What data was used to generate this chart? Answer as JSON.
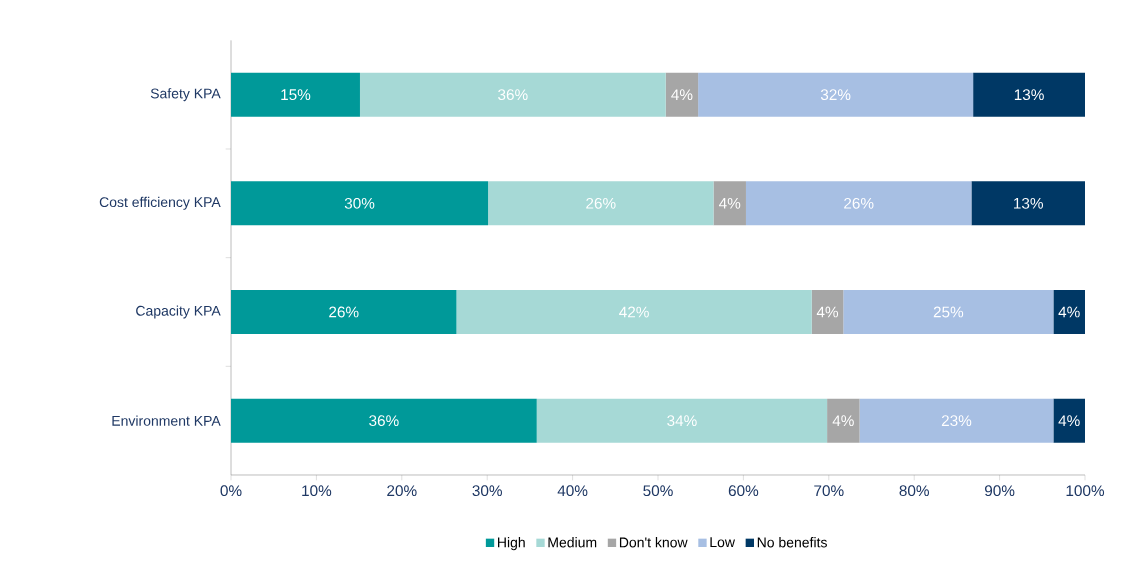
{
  "chart_data": {
    "type": "bar",
    "orientation": "horizontal",
    "stacked": true,
    "categories": [
      "Safety KPA",
      "Cost efficiency KPA",
      "Capacity KPA",
      "Environment KPA"
    ],
    "series": [
      {
        "name": "High",
        "color": "#009999",
        "values": [
          15.1,
          30.1,
          26.4,
          35.8
        ],
        "value_labels": [
          "15%",
          "30%",
          "26%",
          "36%"
        ]
      },
      {
        "name": "Medium",
        "color": "#a6d9d6",
        "values": [
          35.8,
          26.4,
          41.6,
          34.0
        ],
        "value_labels": [
          "36%",
          "26%",
          "42%",
          "34%"
        ]
      },
      {
        "name": "Don't know",
        "color": "#a6a6a6",
        "values": [
          3.8,
          3.8,
          3.7,
          3.8
        ],
        "value_labels": [
          "4%",
          "4%",
          "4%",
          "4%"
        ]
      },
      {
        "name": "Low",
        "color": "#a7bfe3",
        "values": [
          32.2,
          26.4,
          24.6,
          22.7
        ],
        "value_labels": [
          "32%",
          "26%",
          "25%",
          "23%"
        ]
      },
      {
        "name": "No benefits",
        "color": "#003865",
        "values": [
          13.1,
          13.3,
          3.7,
          3.7
        ],
        "value_labels": [
          "13%",
          "13%",
          "4%",
          "4%"
        ]
      }
    ],
    "xlim": [
      0,
      100
    ],
    "xticks": [
      {
        "value": 0,
        "label": "0%"
      },
      {
        "value": 10,
        "label": "10%"
      },
      {
        "value": 20,
        "label": "20%"
      },
      {
        "value": 30,
        "label": "30%"
      },
      {
        "value": 40,
        "label": "40%"
      },
      {
        "value": 50,
        "label": "50%"
      },
      {
        "value": 60,
        "label": "60%"
      },
      {
        "value": 70,
        "label": "70%"
      },
      {
        "value": 80,
        "label": "80%"
      },
      {
        "value": 90,
        "label": "90%"
      },
      {
        "value": 100,
        "label": "100%"
      }
    ],
    "legend": "bottom",
    "grid": false
  }
}
